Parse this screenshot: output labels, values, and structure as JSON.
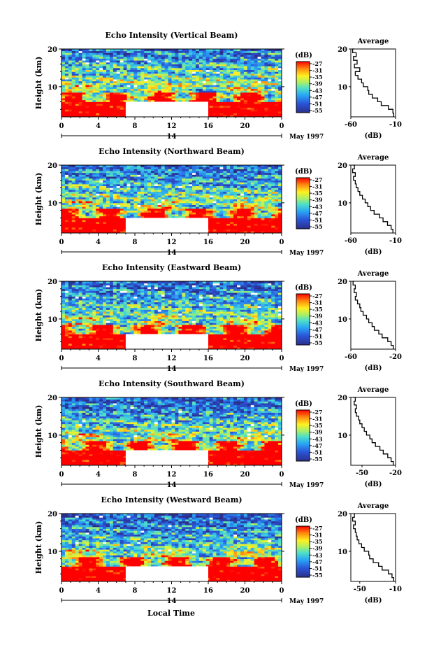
{
  "figure": {
    "xlabel": "Local Time",
    "date_label": "May 1997",
    "colorbar_unit": "(dB)",
    "colorbar_ticks": [
      "-27",
      "-31",
      "-35",
      "-39",
      "-43",
      "-47",
      "-51",
      "-55"
    ],
    "average_title": "Average",
    "average_xlabel": "(dB)",
    "colors": {
      "saturated": "#ee2a20",
      "gap": "#ffffff",
      "low": "#2b2f8c",
      "high": "#ff0000"
    }
  },
  "chart_data": [
    {
      "type": "heatmap",
      "title": "Echo Intensity (Vertical Beam)",
      "ylabel": "Height (km)",
      "xticks": [
        "0",
        "4",
        "8",
        "12",
        "16",
        "20",
        "0"
      ],
      "day_label": "14",
      "xlim": [
        0,
        24
      ],
      "ylim": [
        2,
        20
      ],
      "yticks": [
        10,
        20
      ],
      "color_range_dB": [
        -55,
        -27
      ],
      "data_gap": {
        "x": [
          7,
          16
        ],
        "y": [
          2,
          6
        ]
      },
      "average": {
        "type": "line",
        "title": "Average",
        "xlabel": "(dB)",
        "xlim": [
          -60,
          -10
        ],
        "xticks": [
          "-60",
          "-10"
        ],
        "yticks": [
          10,
          20
        ],
        "height": [
          2,
          3,
          4,
          5,
          6,
          7,
          8,
          9,
          10,
          11,
          12,
          13,
          14,
          15,
          16,
          17,
          18,
          19,
          20
        ],
        "dB": [
          -12,
          -13,
          -18,
          -26,
          -30,
          -36,
          -40,
          -41,
          -46,
          -48,
          -52,
          -55,
          -50,
          -56,
          -53,
          -57,
          -54,
          -58,
          -56
        ]
      }
    },
    {
      "type": "heatmap",
      "title": "Echo Intensity (Northward Beam)",
      "ylabel": "Height (km)",
      "xticks": [
        "0",
        "4",
        "8",
        "12",
        "16",
        "20",
        "0"
      ],
      "day_label": "14",
      "xlim": [
        0,
        24
      ],
      "ylim": [
        2,
        20
      ],
      "yticks": [
        10,
        20
      ],
      "color_range_dB": [
        -55,
        -27
      ],
      "data_gap": {
        "x": [
          7,
          16
        ],
        "y": [
          2,
          6
        ]
      },
      "average": {
        "type": "line",
        "title": "Average",
        "xlabel": "(dB)",
        "xlim": [
          -60,
          -10
        ],
        "xticks": [
          "-60",
          "-10"
        ],
        "yticks": [
          10,
          20
        ],
        "height": [
          2,
          3,
          4,
          5,
          6,
          7,
          8,
          9,
          10,
          11,
          12,
          13,
          14,
          15,
          16,
          17,
          18,
          19,
          20
        ],
        "dB": [
          -13,
          -15,
          -19,
          -24,
          -28,
          -34,
          -38,
          -41,
          -44,
          -47,
          -50,
          -52,
          -54,
          -55,
          -57,
          -55,
          -58,
          -56,
          -58
        ]
      }
    },
    {
      "type": "heatmap",
      "title": "Echo Intensity (Eastward Beam)",
      "ylabel": "Height (km)",
      "xticks": [
        "0",
        "4",
        "8",
        "12",
        "16",
        "20",
        "0"
      ],
      "day_label": "14",
      "xlim": [
        0,
        24
      ],
      "ylim": [
        2,
        20
      ],
      "yticks": [
        10,
        20
      ],
      "color_range_dB": [
        -55,
        -27
      ],
      "data_gap": {
        "x": [
          7,
          16
        ],
        "y": [
          2,
          6
        ]
      },
      "average": {
        "type": "line",
        "title": "Average",
        "xlabel": "(dB)",
        "xlim": [
          -60,
          -20
        ],
        "xticks": [
          "-60",
          "-20"
        ],
        "yticks": [
          10,
          20
        ],
        "height": [
          2,
          3,
          4,
          5,
          6,
          7,
          8,
          9,
          10,
          11,
          12,
          13,
          14,
          15,
          16,
          17,
          18,
          19,
          20
        ],
        "dB": [
          -22,
          -24,
          -27,
          -32,
          -35,
          -39,
          -41,
          -44,
          -46,
          -49,
          -51,
          -52,
          -54,
          -56,
          -55,
          -57,
          -56,
          -58,
          -57
        ]
      }
    },
    {
      "type": "heatmap",
      "title": "Echo Intensity (Southward Beam)",
      "ylabel": "Height (km)",
      "xticks": [
        "0",
        "4",
        "8",
        "12",
        "16",
        "20",
        "0"
      ],
      "day_label": "14",
      "xlim": [
        0,
        24
      ],
      "ylim": [
        2,
        20
      ],
      "yticks": [
        10,
        20
      ],
      "color_range_dB": [
        -55,
        -27
      ],
      "data_gap": {
        "x": [
          7,
          16
        ],
        "y": [
          2,
          6
        ]
      },
      "average": {
        "type": "line",
        "title": "Average",
        "xlabel": "(dB)",
        "xlim": [
          -60,
          -20
        ],
        "xticks": [
          "-50",
          "-20"
        ],
        "yticks": [
          10,
          20
        ],
        "height": [
          2,
          3,
          4,
          5,
          6,
          7,
          8,
          9,
          10,
          11,
          12,
          13,
          14,
          15,
          16,
          17,
          18,
          19,
          20
        ],
        "dB": [
          -22,
          -24,
          -27,
          -31,
          -34,
          -38,
          -41,
          -43,
          -46,
          -48,
          -50,
          -52,
          -53,
          -55,
          -56,
          -55,
          -57,
          -56,
          -58
        ]
      }
    },
    {
      "type": "heatmap",
      "title": "Echo Intensity (Westward Beam)",
      "ylabel": "Height (km)",
      "xticks": [
        "0",
        "4",
        "8",
        "12",
        "16",
        "20",
        "0"
      ],
      "day_label": "14",
      "xlim": [
        0,
        24
      ],
      "ylim": [
        2,
        20
      ],
      "yticks": [
        10,
        20
      ],
      "color_range_dB": [
        -55,
        -27
      ],
      "data_gap": {
        "x": [
          7,
          16
        ],
        "y": [
          2,
          6
        ]
      },
      "average": {
        "type": "line",
        "title": "Average",
        "xlabel": "(dB)",
        "xlim": [
          -60,
          -10
        ],
        "xticks": [
          "-50",
          "-10"
        ],
        "yticks": [
          10,
          20
        ],
        "height": [
          2,
          3,
          4,
          5,
          6,
          7,
          8,
          9,
          10,
          11,
          12,
          13,
          14,
          15,
          16,
          17,
          18,
          19,
          20
        ],
        "dB": [
          -12,
          -14,
          -18,
          -25,
          -29,
          -35,
          -39,
          -40,
          -45,
          -48,
          -51,
          -53,
          -54,
          -55,
          -57,
          -55,
          -58,
          -56,
          -57
        ]
      }
    }
  ]
}
